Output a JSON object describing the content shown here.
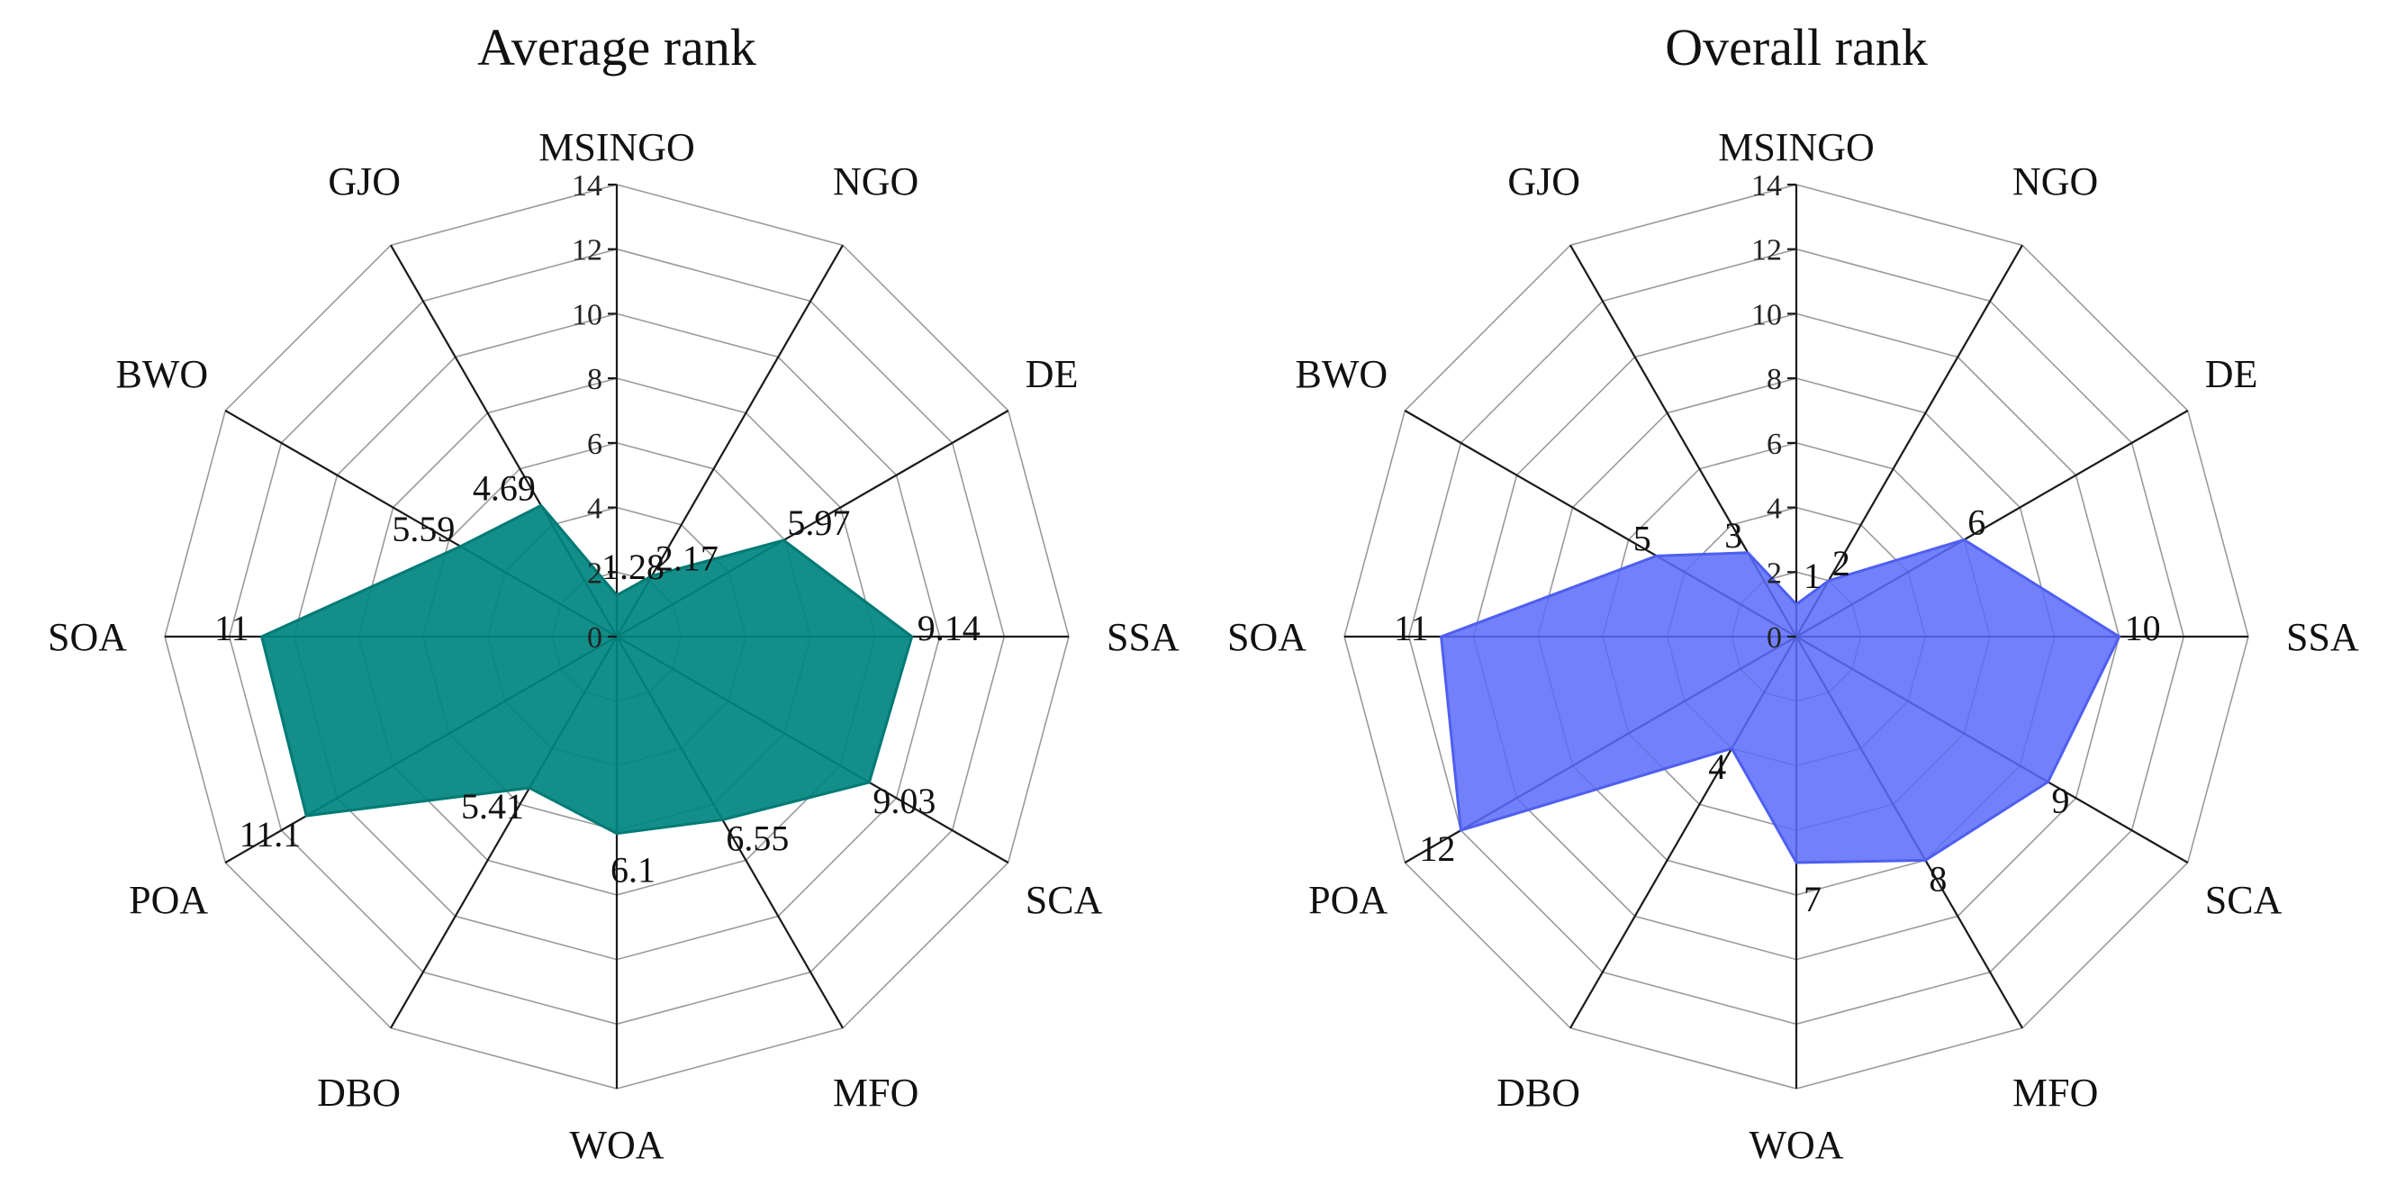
{
  "chart_data": [
    {
      "type": "radar",
      "title": "Average rank",
      "categories": [
        "MSINGO",
        "NGO",
        "DE",
        "SSA",
        "SCA",
        "MFO",
        "WOA",
        "DBO",
        "POA",
        "SOA",
        "BWO",
        "GJO"
      ],
      "values": [
        1.28,
        2.17,
        5.97,
        9.14,
        9.03,
        6.55,
        6.1,
        5.41,
        11.1,
        11,
        5.59,
        4.69
      ],
      "value_labels": [
        "1.28",
        "2.17",
        "5.97",
        "9.14",
        "9.03",
        "6.55",
        "6.1",
        "5.41",
        "11.1",
        "11",
        "5.59",
        "4.69"
      ],
      "rmin": 0,
      "rmax": 14,
      "ticks": [
        0,
        2,
        4,
        6,
        8,
        10,
        12,
        14
      ],
      "fill_color": "#00847F",
      "fill_opacity": 0.92,
      "edge_color": "#007A76"
    },
    {
      "type": "radar",
      "title": "Overall rank",
      "categories": [
        "MSINGO",
        "NGO",
        "DE",
        "SSA",
        "SCA",
        "MFO",
        "WOA",
        "DBO",
        "POA",
        "SOA",
        "BWO",
        "GJO"
      ],
      "values": [
        1,
        2,
        6,
        10,
        9,
        8,
        7,
        4,
        12,
        11,
        5,
        3
      ],
      "value_labels": [
        "1",
        "2",
        "6",
        "10",
        "9",
        "8",
        "7",
        "4",
        "12",
        "11",
        "5",
        "3"
      ],
      "rmin": 0,
      "rmax": 14,
      "ticks": [
        0,
        2,
        4,
        6,
        8,
        10,
        12,
        14
      ],
      "fill_color": "#5B6CF8",
      "fill_opacity": 0.86,
      "edge_color": "#4E5FF0"
    }
  ]
}
